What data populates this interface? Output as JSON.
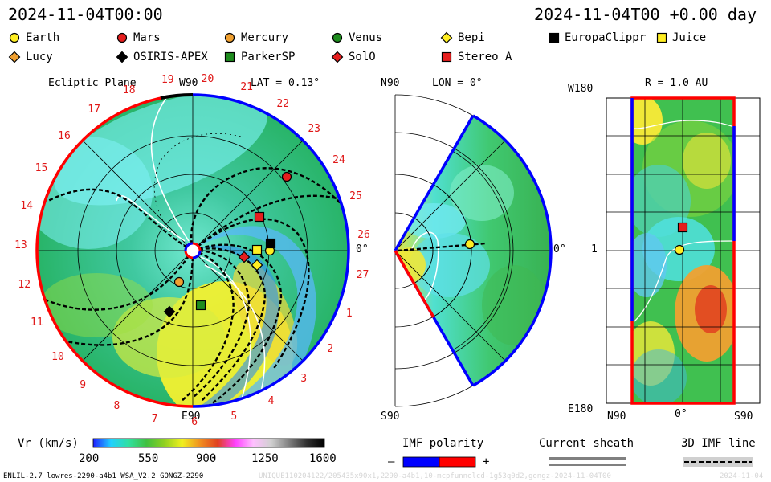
{
  "header": {
    "timestamp": "2024-11-04T00:00",
    "offset": "2024-11-04T00 +0.00 day"
  },
  "spacecraft": [
    {
      "label": "Earth",
      "marker": "circle",
      "color": "#ffee22"
    },
    {
      "label": "Mars",
      "marker": "circle",
      "color": "#e61e1e"
    },
    {
      "label": "Mercury",
      "marker": "circle",
      "color": "#f0a030"
    },
    {
      "label": "Venus",
      "marker": "circle",
      "color": "#1e8c1e"
    },
    {
      "label": "Bepi",
      "marker": "diamond",
      "color": "#ffee22"
    },
    {
      "label": "EuropaClippr",
      "marker": "square",
      "color": "#000000"
    },
    {
      "label": "Juice",
      "marker": "square",
      "color": "#ffee22"
    },
    {
      "label": "Lucy",
      "marker": "diamond",
      "color": "#f0a030"
    },
    {
      "label": "OSIRIS-APEX",
      "marker": "diamond",
      "color": "#000000"
    },
    {
      "label": "ParkerSP",
      "marker": "square",
      "color": "#1e8c1e"
    },
    {
      "label": "SolO",
      "marker": "diamond",
      "color": "#e61e1e"
    },
    {
      "label": "Stereo_A",
      "marker": "square",
      "color": "#e61e1e"
    }
  ],
  "ecliptic": {
    "title": "Ecliptic Plane",
    "lat": "LAT = 0.13°",
    "top_label": "W90",
    "bottom_label": "E90",
    "right_label": "0°",
    "rotation_labels": [
      "20",
      "21",
      "22",
      "23",
      "24",
      "25",
      "26",
      "27",
      "1",
      "2",
      "3",
      "4",
      "5",
      "6",
      "7",
      "8",
      "9",
      "10",
      "11",
      "12",
      "13",
      "14",
      "15",
      "16",
      "17",
      "18",
      "19"
    ]
  },
  "meridional": {
    "lon": "LON = 0°",
    "top_label": "N90",
    "bottom_label": "S90",
    "right_label": "0°"
  },
  "sphere": {
    "title": "R = 1.0 AU",
    "top_left": "W180",
    "mid_left": "1",
    "bottom_left": "E180",
    "x_labels": [
      "N90",
      "0°",
      "S90"
    ]
  },
  "colorbar": {
    "title": "Vr (km/s)",
    "ticks": [
      "200",
      "550",
      "900",
      "1250",
      "1600"
    ],
    "colors": [
      "#2020ff",
      "#20d0ff",
      "#30e0a0",
      "#40c040",
      "#90d020",
      "#f0f020",
      "#f09020",
      "#e04020",
      "#ff40ff",
      "#ffc0ff",
      "#d0d0d0",
      "#808080",
      "#303030",
      "#000000"
    ]
  },
  "imf_legend": {
    "title": "IMF polarity",
    "minus": "–",
    "plus": "+",
    "neg_color": "#0000ff",
    "pos_color": "#ff0000"
  },
  "sheath_legend": {
    "title": "Current sheath"
  },
  "imf3d_legend": {
    "title": "3D IMF line"
  },
  "footer": {
    "model": "ENLIL-2.7 lowres-2290-a4b1 WSA_V2.2 GONGZ-2290",
    "run_id": "UNIQUE110204122/205435x90x1,2290-a4b1,10-mcpfunnelcd-1g53q0d2,gongz-2024-11-04T00",
    "date": "2024-11-04"
  }
}
